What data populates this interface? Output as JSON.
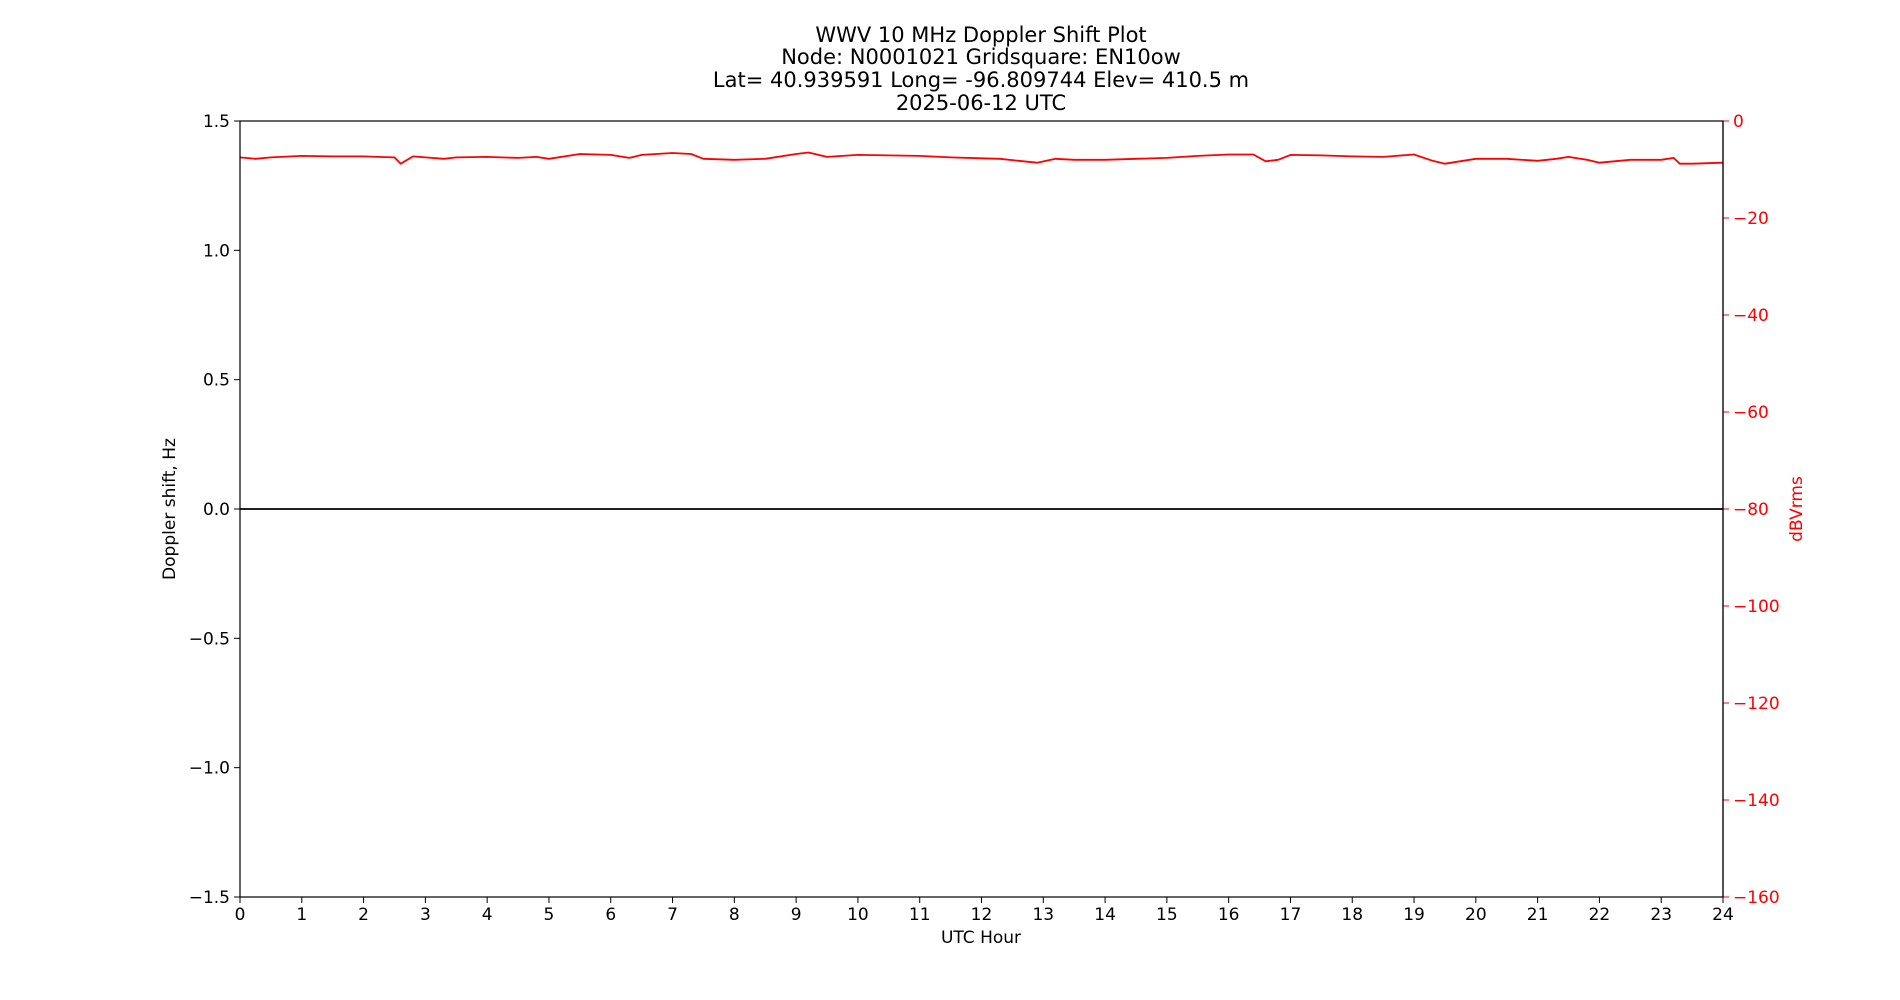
{
  "chart_data": {
    "type": "line",
    "title_lines": [
      "WWV 10 MHz Doppler Shift Plot",
      "Node:  N0001021     Gridsquare:  EN10ow",
      "Lat= 40.939591    Long= -96.809744    Elev= 410.5 m",
      "2025-06-12  UTC"
    ],
    "xlabel": "UTC Hour",
    "ylabel": "Doppler shift, Hz",
    "y2label": "dBVrms",
    "xlim": [
      0,
      24
    ],
    "ylim": [
      -1.5,
      1.5
    ],
    "y2lim": [
      -160,
      0
    ],
    "xticks": [
      0,
      1,
      2,
      3,
      4,
      5,
      6,
      7,
      8,
      9,
      10,
      11,
      12,
      13,
      14,
      15,
      16,
      17,
      18,
      19,
      20,
      21,
      22,
      23,
      24
    ],
    "yticks": [
      1.5,
      1.0,
      0.5,
      0.0,
      -0.5,
      -1.0,
      -1.5
    ],
    "y2ticks": [
      0,
      -20,
      -40,
      -60,
      -80,
      -100,
      -120,
      -140,
      -160
    ],
    "grid": false,
    "series": [
      {
        "axis": "left",
        "color": "#000000",
        "x": [
          0,
          0.5,
          1,
          1.5,
          2,
          2.5,
          3,
          3.5,
          4,
          4.5,
          5,
          5.5,
          6,
          6.5,
          7,
          7.5,
          8,
          8.5,
          9,
          9.5,
          10,
          10.5,
          11,
          11.5,
          12,
          12.5,
          13,
          13.5,
          14,
          14.5,
          15,
          15.5,
          16,
          16.5,
          17,
          17.5,
          18,
          18.5,
          19,
          19.5,
          20,
          20.5,
          21,
          21.5,
          22,
          22.5,
          23,
          23.5,
          24
        ],
        "y": [
          0.0,
          0.0,
          0.0,
          0.0,
          0.0,
          0.0,
          0.0,
          0.0,
          0.0,
          0.0,
          0.0,
          0.0,
          0.0,
          0.0,
          0.0,
          0.0,
          0.0,
          0.0,
          0.0,
          0.0,
          0.0,
          0.0,
          0.0,
          0.0,
          0.0,
          0.0,
          0.0,
          0.0,
          0.0,
          0.0,
          0.0,
          0.0,
          0.0,
          0.0,
          0.0,
          0.0,
          0.0,
          0.0,
          0.0,
          0.0,
          0.0,
          0.0,
          0.0,
          0.0,
          0.0,
          0.0,
          0.0,
          0.0,
          0.0
        ]
      },
      {
        "axis": "right",
        "color": "#ff0000",
        "x": [
          0,
          0.25,
          0.5,
          1,
          1.5,
          2,
          2.5,
          2.6,
          2.8,
          3,
          3.3,
          3.5,
          4,
          4.5,
          4.8,
          5,
          5.5,
          6,
          6.3,
          6.5,
          7,
          7.3,
          7.5,
          8,
          8.5,
          9,
          9.2,
          9.5,
          10,
          10.5,
          11,
          11.5,
          12,
          12.3,
          12.6,
          12.9,
          13.2,
          13.5,
          14,
          14.5,
          15,
          15.5,
          16,
          16.4,
          16.6,
          16.8,
          17,
          17.5,
          18,
          18.5,
          19,
          19.3,
          19.5,
          20,
          20.5,
          21,
          21.3,
          21.5,
          21.8,
          22,
          22.5,
          23,
          23.2,
          23.3,
          23.5,
          24
        ],
        "y": [
          -7.5,
          -7.8,
          -7.5,
          -7.2,
          -7.3,
          -7.3,
          -7.5,
          -8.8,
          -7.3,
          -7.5,
          -7.8,
          -7.5,
          -7.4,
          -7.6,
          -7.4,
          -7.8,
          -6.8,
          -7.0,
          -7.6,
          -7.0,
          -6.6,
          -6.8,
          -7.8,
          -8.0,
          -7.8,
          -6.8,
          -6.5,
          -7.4,
          -7.0,
          -7.1,
          -7.2,
          -7.5,
          -7.7,
          -7.8,
          -8.2,
          -8.6,
          -7.8,
          -8.0,
          -8.0,
          -7.8,
          -7.6,
          -7.2,
          -6.9,
          -6.9,
          -8.3,
          -8.0,
          -7.0,
          -7.1,
          -7.3,
          -7.4,
          -6.9,
          -8.2,
          -8.8,
          -7.8,
          -7.8,
          -8.2,
          -7.8,
          -7.4,
          -8.0,
          -8.6,
          -8.0,
          -8.0,
          -7.6,
          -8.8,
          -8.8,
          -8.6
        ]
      }
    ]
  }
}
